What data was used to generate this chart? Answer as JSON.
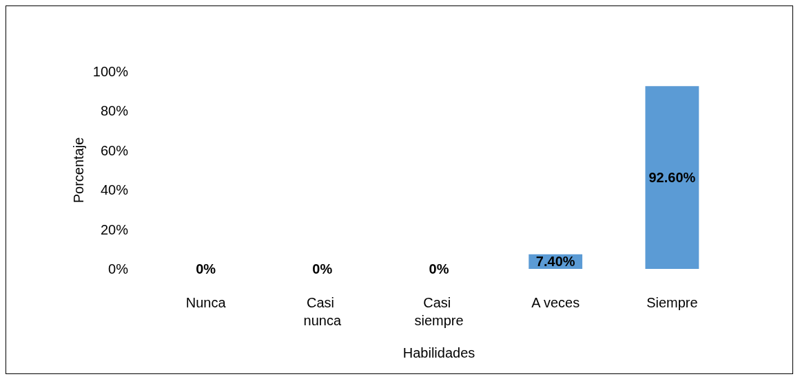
{
  "chart_data": {
    "type": "bar",
    "xlabel": "Habilidades",
    "ylabel": "Porcentaje",
    "categories": [
      "Nunca",
      "Casi nunca",
      "Casi siempre",
      "A veces",
      "Siempre"
    ],
    "values": [
      0,
      0,
      0,
      7.4,
      92.6
    ],
    "value_labels": [
      "0%",
      "0%",
      "0%",
      "7.40%",
      "92.60%"
    ],
    "color": "#5b9bd5",
    "ylim": [
      0,
      100
    ],
    "yticks": [
      {
        "value": 0,
        "label": "0%"
      },
      {
        "value": 20,
        "label": "20%"
      },
      {
        "value": 40,
        "label": "40%"
      },
      {
        "value": 60,
        "label": "60%"
      },
      {
        "value": 80,
        "label": "80%"
      },
      {
        "value": 100,
        "label": "100%"
      }
    ],
    "grid": false
  }
}
